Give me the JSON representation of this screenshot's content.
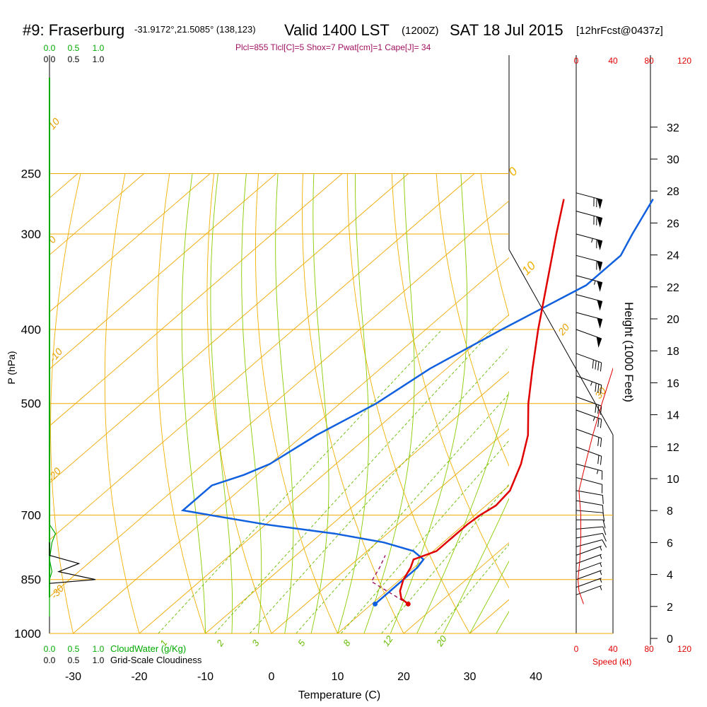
{
  "header": {
    "station_id": "#9: Fraserburg",
    "coords": "-31.9172°,21.5085° (138,123)",
    "valid": "Valid 1400 LST",
    "utc": "(1200Z)",
    "date": "SAT 18 Jul 2015",
    "forecast": "[12hrFcst@0437z]",
    "indices": "Plcl=855 Tlcl[C]=5 Shox=7 Pwat[cm]=1 Cape[J]= 34"
  },
  "colors": {
    "isobar": "#f0a800",
    "dry_adiabat": "#f0b000",
    "moist_adiabat": "#88cc00",
    "mixing_ratio": "#66bb00",
    "temperature": "#e00000",
    "dewpoint": "#1060e0",
    "parcel": "#a01060",
    "cloud_water": "#00aa00",
    "cloudiness": "#000000",
    "wind_speed": "#e00000",
    "title_indices": "#a01060"
  },
  "labels": {
    "p_axis": "P (hPa)",
    "t_axis": "Temperature (C)",
    "height_axis": "Height (1000 Feet)",
    "cloud_water": "CloudWater (g/Kg)",
    "cloudiness": "Grid-Scale Cloudiness",
    "speed": "Speed (kt)"
  },
  "chart_data": {
    "type": "line",
    "subtype": "skew-t log-p sounding",
    "x_axis": {
      "label": "Temperature (C)",
      "ticks": [
        -30,
        -20,
        -10,
        0,
        10,
        20,
        30,
        40
      ],
      "range": [
        -35,
        46
      ]
    },
    "y_axis": {
      "label": "P (hPa)",
      "scale": "log",
      "ticks": [
        250,
        300,
        400,
        500,
        700,
        850,
        1000
      ],
      "range": [
        1000,
        250
      ]
    },
    "height_axis": {
      "label": "Height (1000 Feet)",
      "ticks": [
        0,
        2,
        4,
        6,
        8,
        10,
        12,
        14,
        16,
        18,
        20,
        22,
        24,
        26,
        28,
        30,
        32
      ]
    },
    "isotherm_labels": [
      "-30",
      "-20",
      "-10",
      "0",
      "10",
      "20",
      "30"
    ],
    "mixing_ratio_labels": [
      "1",
      "2",
      "3",
      "5",
      "8",
      "12",
      "20"
    ],
    "wind_speed_ticks": [
      "0",
      "40",
      "80",
      "120"
    ],
    "cloud_ticks": [
      "0.0",
      "0.5",
      "1.0"
    ],
    "series": [
      {
        "key": "temperature",
        "points": [
          [
            915,
            15.5
          ],
          [
            900,
            13.5
          ],
          [
            880,
            12.0
          ],
          [
            850,
            10.5
          ],
          [
            820,
            9.5
          ],
          [
            800,
            8.5
          ],
          [
            780,
            10.5
          ],
          [
            750,
            10.5
          ],
          [
            720,
            10.5
          ],
          [
            700,
            10.8
          ],
          [
            680,
            11.5
          ],
          [
            650,
            11.0
          ],
          [
            600,
            8.0
          ],
          [
            550,
            4.0
          ],
          [
            500,
            -1.5
          ],
          [
            450,
            -7.0
          ],
          [
            400,
            -13.0
          ],
          [
            350,
            -19.5
          ],
          [
            300,
            -27.0
          ],
          [
            270,
            -32.0
          ]
        ]
      },
      {
        "key": "dewpoint",
        "points": [
          [
            915,
            10.5
          ],
          [
            880,
            10.5
          ],
          [
            850,
            10.5
          ],
          [
            820,
            10.5
          ],
          [
            800,
            10.0
          ],
          [
            780,
            7.0
          ],
          [
            760,
            1.0
          ],
          [
            740,
            -8.0
          ],
          [
            720,
            -20.0
          ],
          [
            700,
            -30.0
          ],
          [
            690,
            -35.0
          ],
          [
            640,
            -35.0
          ],
          [
            620,
            -32.0
          ],
          [
            600,
            -30.0
          ],
          [
            550,
            -28.0
          ],
          [
            500,
            -24.5
          ],
          [
            450,
            -22.5
          ],
          [
            400,
            -18.5
          ],
          [
            350,
            -13.5
          ],
          [
            320,
            -13.5
          ],
          [
            300,
            -15.5
          ],
          [
            270,
            -18.5
          ]
        ]
      },
      {
        "key": "parcel",
        "points": [
          [
            915,
            15.5
          ],
          [
            855,
            6.0
          ],
          [
            820,
            4.8
          ],
          [
            790,
            3.5
          ]
        ]
      }
    ],
    "cloud_water": [
      [
        950,
        0.0
      ],
      [
        850,
        0.0
      ],
      [
        830,
        0.05
      ],
      [
        800,
        0.0
      ],
      [
        760,
        0.05
      ],
      [
        740,
        0.12
      ],
      [
        720,
        0.0
      ]
    ],
    "cloudiness": [
      [
        860,
        0.0
      ],
      [
        850,
        0.5
      ],
      [
        830,
        0.1
      ],
      [
        810,
        0.32
      ],
      [
        790,
        0.0
      ],
      [
        760,
        0.0
      ]
    ],
    "wind_speed": [
      [
        915,
        8
      ],
      [
        880,
        3
      ],
      [
        850,
        2
      ],
      [
        800,
        4
      ],
      [
        750,
        5
      ],
      [
        700,
        5
      ],
      [
        650,
        3
      ],
      [
        600,
        10
      ],
      [
        550,
        18
      ],
      [
        500,
        28
      ],
      [
        450,
        40
      ],
      [
        400,
        50
      ],
      [
        350,
        58
      ],
      [
        300,
        68
      ],
      [
        270,
        74
      ],
      [
        260,
        76
      ]
    ],
    "wind_barbs": [
      {
        "p": 265,
        "dir": 285,
        "spd": 70
      },
      {
        "p": 280,
        "dir": 285,
        "spd": 70
      },
      {
        "p": 300,
        "dir": 285,
        "spd": 65
      },
      {
        "p": 320,
        "dir": 285,
        "spd": 60
      },
      {
        "p": 340,
        "dir": 285,
        "spd": 55
      },
      {
        "p": 360,
        "dir": 285,
        "spd": 50
      },
      {
        "p": 380,
        "dir": 285,
        "spd": 50
      },
      {
        "p": 400,
        "dir": 290,
        "spd": 50
      },
      {
        "p": 430,
        "dir": 290,
        "spd": 40
      },
      {
        "p": 460,
        "dir": 290,
        "spd": 35
      },
      {
        "p": 490,
        "dir": 290,
        "spd": 30
      },
      {
        "p": 510,
        "dir": 290,
        "spd": 25
      },
      {
        "p": 540,
        "dir": 290,
        "spd": 20
      },
      {
        "p": 570,
        "dir": 290,
        "spd": 20
      },
      {
        "p": 600,
        "dir": 285,
        "spd": 15
      },
      {
        "p": 625,
        "dir": 285,
        "spd": 10
      },
      {
        "p": 650,
        "dir": 280,
        "spd": 10
      },
      {
        "p": 670,
        "dir": 280,
        "spd": 10
      },
      {
        "p": 690,
        "dir": 275,
        "spd": 10
      },
      {
        "p": 710,
        "dir": 270,
        "spd": 10
      },
      {
        "p": 730,
        "dir": 265,
        "spd": 10
      },
      {
        "p": 750,
        "dir": 260,
        "spd": 10
      },
      {
        "p": 770,
        "dir": 255,
        "spd": 10
      },
      {
        "p": 790,
        "dir": 250,
        "spd": 5
      },
      {
        "p": 810,
        "dir": 250,
        "spd": 5
      },
      {
        "p": 830,
        "dir": 250,
        "spd": 5
      },
      {
        "p": 850,
        "dir": 250,
        "spd": 5
      },
      {
        "p": 870,
        "dir": 250,
        "spd": 5
      },
      {
        "p": 890,
        "dir": 250,
        "spd": 5
      }
    ]
  }
}
